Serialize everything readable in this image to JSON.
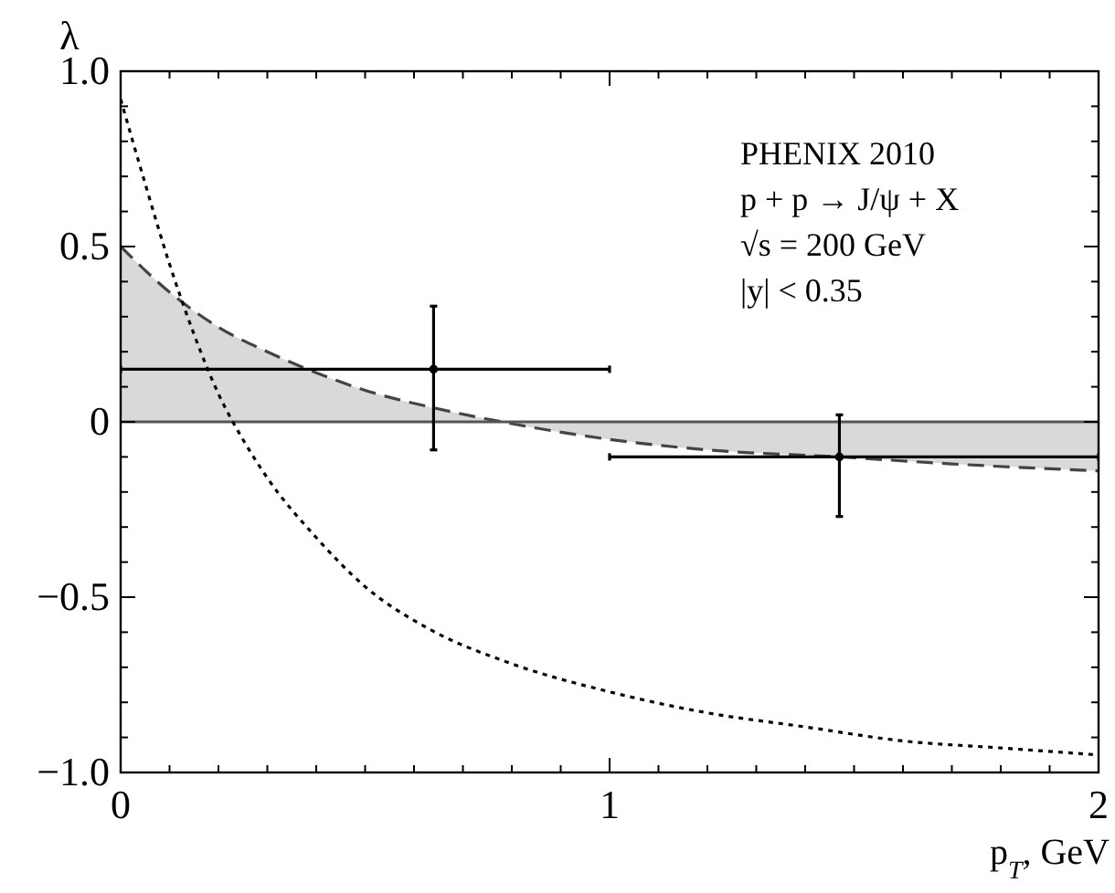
{
  "chart_data": {
    "type": "line",
    "xlabel": "p$_{T}$, GeV",
    "ylabel": "λ",
    "annotations": [
      "PHENIX 2010",
      "p + p → J/ψ + X",
      "√s = 200 GeV",
      "|y| < 0.35"
    ],
    "xlim": [
      0,
      2
    ],
    "ylim": [
      -1.0,
      1.0
    ],
    "xticks": [
      0,
      {
        "value": 0.1,
        "label": null
      },
      {
        "value": 0.2,
        "label": null
      },
      {
        "value": 0.3,
        "label": null
      },
      {
        "value": 0.4,
        "label": null
      },
      {
        "value": 0.5,
        "label": null
      },
      {
        "value": 0.6,
        "label": null
      },
      {
        "value": 0.7,
        "label": null
      },
      {
        "value": 0.8,
        "label": null
      },
      {
        "value": 0.9,
        "label": null
      },
      1,
      {
        "value": 1.1,
        "label": null
      },
      {
        "value": 1.2,
        "label": null
      },
      {
        "value": 1.3,
        "label": null
      },
      {
        "value": 1.4,
        "label": null
      },
      {
        "value": 1.5,
        "label": null
      },
      {
        "value": 1.6,
        "label": null
      },
      {
        "value": 1.7,
        "label": null
      },
      {
        "value": 1.8,
        "label": null
      },
      {
        "value": 1.9,
        "label": null
      },
      2
    ],
    "yticks": [
      {
        "value": -1.0,
        "label": "−1.0"
      },
      {
        "value": -0.9,
        "label": null
      },
      {
        "value": -0.8,
        "label": null
      },
      {
        "value": -0.7,
        "label": null
      },
      {
        "value": -0.6,
        "label": null
      },
      {
        "value": -0.5,
        "label": "−0.5"
      },
      {
        "value": -0.4,
        "label": null
      },
      {
        "value": -0.3,
        "label": null
      },
      {
        "value": -0.2,
        "label": null
      },
      {
        "value": -0.1,
        "label": null
      },
      0,
      {
        "value": 0.1,
        "label": null
      },
      {
        "value": 0.2,
        "label": null
      },
      {
        "value": 0.3,
        "label": null
      },
      {
        "value": 0.4,
        "label": null
      },
      {
        "value": 0.5,
        "label": "0.5"
      },
      {
        "value": 0.6,
        "label": null
      },
      {
        "value": 0.7,
        "label": null
      },
      {
        "value": 0.8,
        "label": null
      },
      {
        "value": 0.9,
        "label": null
      },
      {
        "value": 1.0,
        "label": "1.0"
      }
    ],
    "grid": false,
    "ref_lines": [
      {
        "axis": "y",
        "value": 0,
        "color": "#555555",
        "line_style": "solid"
      }
    ],
    "series": [
      {
        "type": "area",
        "color": "#d9d9d9",
        "line_style": "dashed",
        "x": [
          0,
          0.1,
          0.2,
          0.3,
          0.4,
          0.5,
          0.64,
          0.78,
          1.0,
          1.2,
          1.47,
          1.7,
          2.0
        ],
        "values": [
          0.5,
          0.37,
          0.27,
          0.2,
          0.14,
          0.09,
          0.04,
          0,
          -0.05,
          -0.08,
          -0.1,
          -0.12,
          -0.14
        ]
      },
      {
        "color": "#000000",
        "line_style": "dotted",
        "x": [
          0,
          0.05,
          0.1,
          0.15,
          0.2,
          0.25,
          0.3,
          0.4,
          0.5,
          0.63,
          0.8,
          1.0,
          1.2,
          1.4,
          1.6,
          1.8,
          2.0
        ],
        "values": [
          0.92,
          0.68,
          0.45,
          0.25,
          0.08,
          -0.05,
          -0.16,
          -0.33,
          -0.47,
          -0.59,
          -0.69,
          -0.77,
          -0.83,
          -0.87,
          -0.91,
          -0.93,
          -0.95
        ]
      },
      {
        "type": "scatter",
        "color": "#000000",
        "marker": "circle",
        "x": [
          0.64,
          1.47
        ],
        "values": [
          0.15,
          -0.1
        ],
        "errors": [
          [
            -0.08,
            0.33
          ],
          [
            -0.27,
            0.02
          ]
        ],
        "xerrors": [
          [
            0,
            1
          ],
          [
            1,
            2
          ]
        ]
      }
    ]
  }
}
